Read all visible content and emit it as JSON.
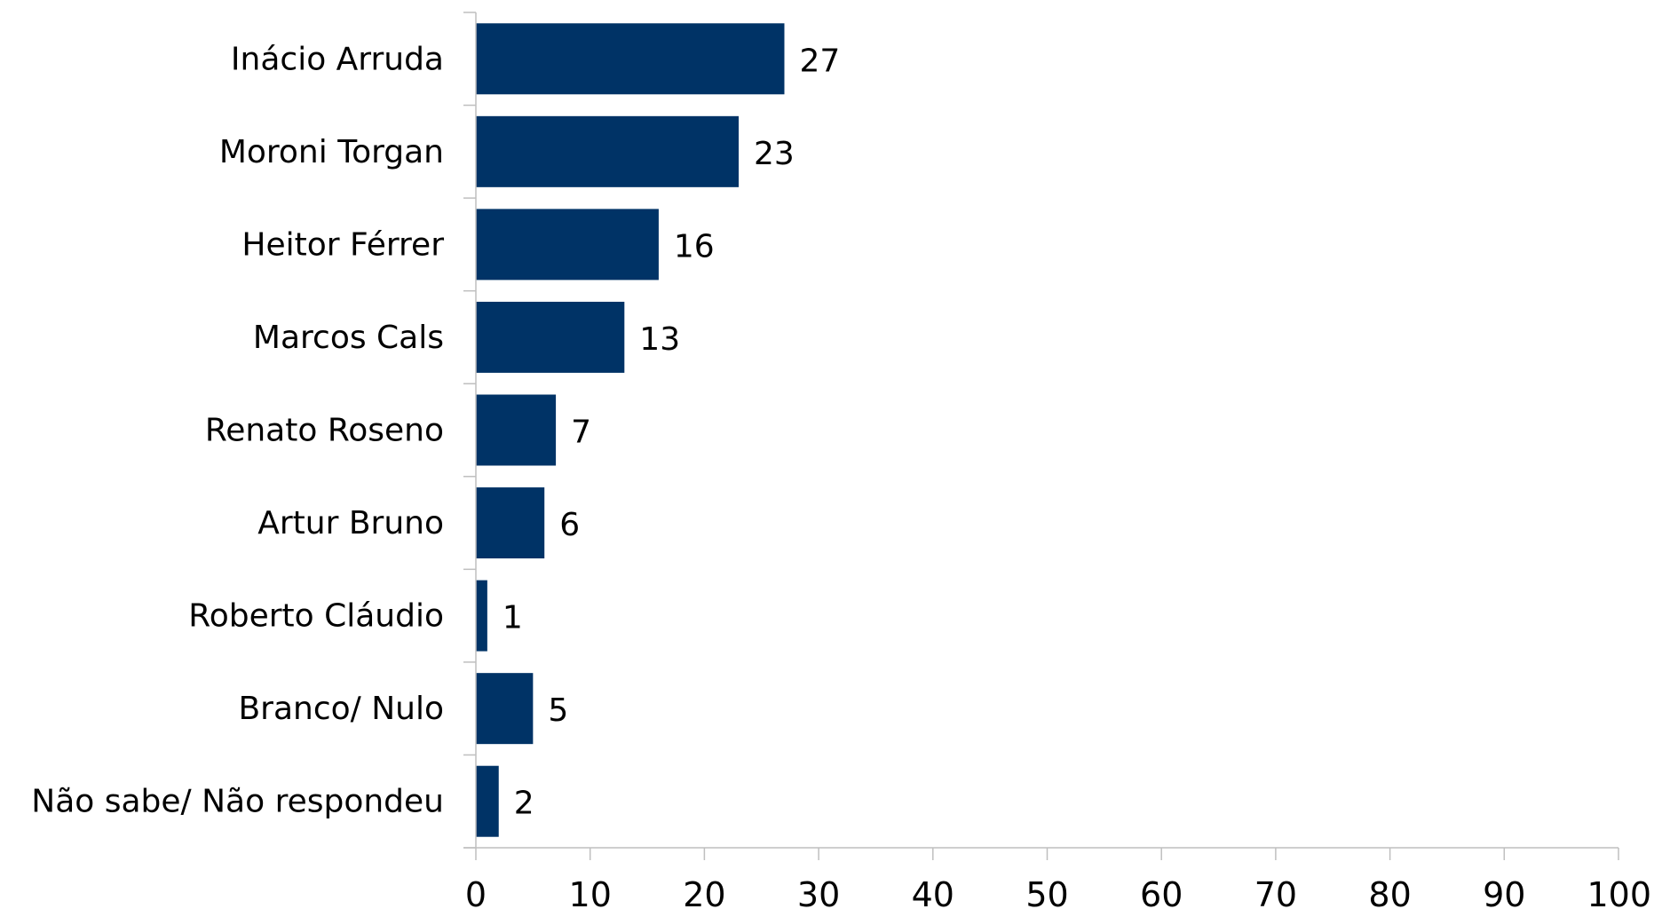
{
  "chart_data": {
    "type": "bar",
    "orientation": "horizontal",
    "categories": [
      "Inácio Arruda",
      "Moroni Torgan",
      "Heitor Férrer",
      "Marcos Cals",
      "Renato Roseno",
      "Artur Bruno",
      "Roberto Cláudio",
      "Branco/ Nulo",
      "Não sabe/ Não respondeu"
    ],
    "values": [
      27,
      23,
      16,
      13,
      7,
      6,
      1,
      5,
      2
    ],
    "xlim": [
      0,
      100
    ],
    "xticks": [
      0,
      10,
      20,
      30,
      40,
      50,
      60,
      70,
      80,
      90,
      100
    ],
    "title": "",
    "xlabel": "",
    "ylabel": "",
    "grid": false,
    "legend": "none",
    "bar_color": "#003366",
    "axis_color": "#bfbfbf"
  }
}
